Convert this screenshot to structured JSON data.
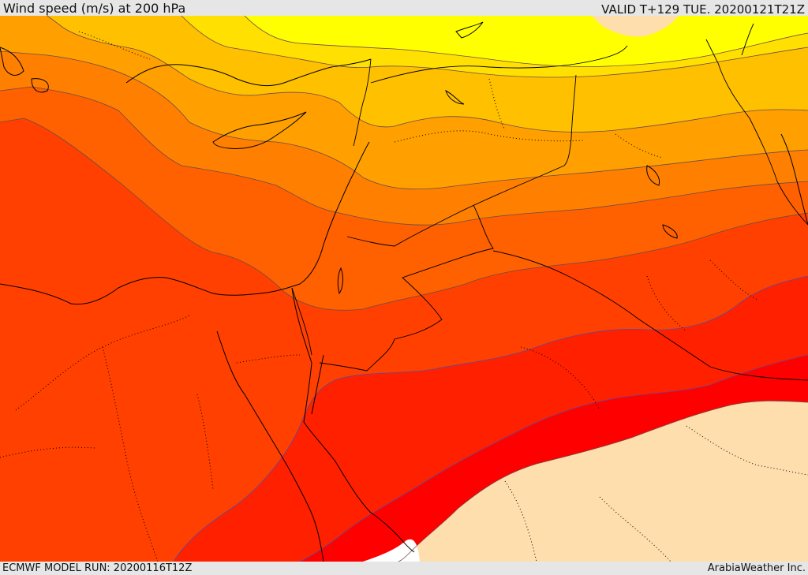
{
  "header": {
    "title": "Wind speed (m/s) at 200 hPa",
    "valid": "VALID T+129 TUE. 20200121T21Z"
  },
  "footer": {
    "model_run": "ECMWF MODEL RUN: 20200116T12Z",
    "credit": "ArabiaWeather Inc."
  },
  "colors": {
    "band_1": "#ffff00",
    "band_2": "#ffe000",
    "band_3": "#ffc000",
    "band_4": "#ffa000",
    "band_5": "#ff8000",
    "band_6": "#ff6000",
    "band_7": "#ff4000",
    "band_8": "#ff2000",
    "band_9": "#ff0000",
    "calm": "#ffdead",
    "land_white": "#ffffff"
  }
}
